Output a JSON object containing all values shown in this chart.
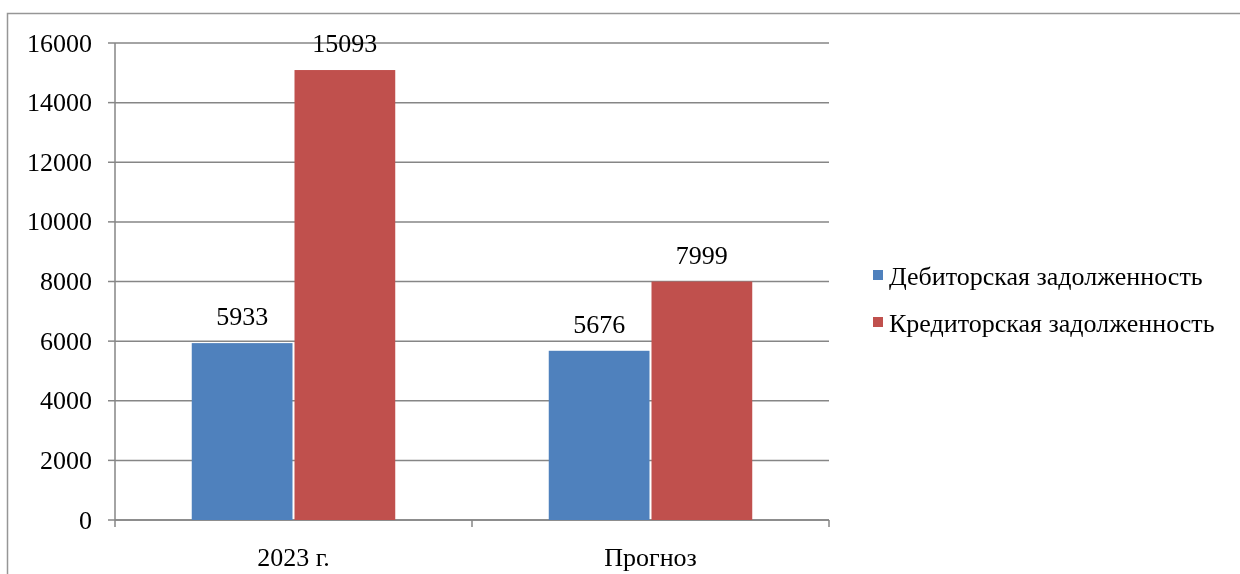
{
  "chart_data": {
    "type": "bar",
    "categories": [
      "2023 г.",
      "Прогноз"
    ],
    "series": [
      {
        "name": "Дебиторская задолженность",
        "color": "#4f81bd",
        "values": [
          5933,
          5676
        ]
      },
      {
        "name": "Кредиторская задолженность",
        "color": "#c0504d",
        "values": [
          15093,
          7999
        ]
      }
    ],
    "ylim": [
      0,
      16000
    ],
    "yticks": [
      0,
      2000,
      4000,
      6000,
      8000,
      10000,
      12000,
      14000,
      16000
    ],
    "grid": "y",
    "legend": "right",
    "data_labels": true
  }
}
